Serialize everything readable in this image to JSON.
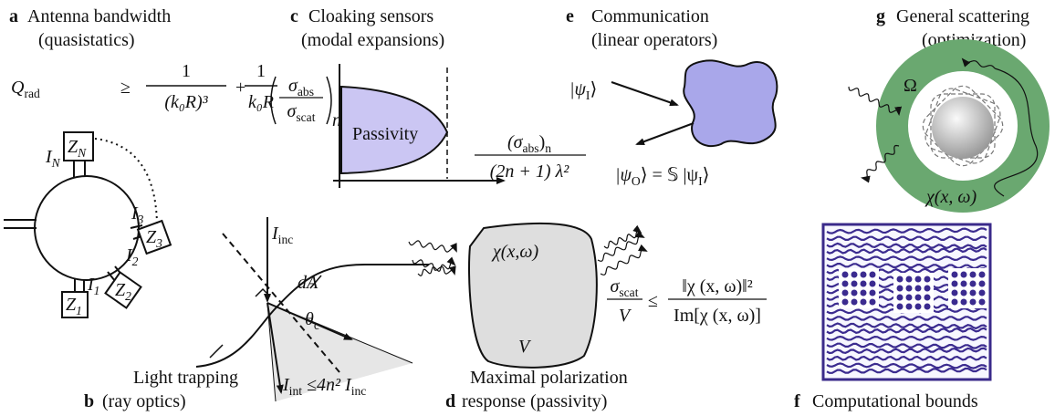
{
  "panels": {
    "a": {
      "letter": "a",
      "title": "Antenna bandwidth",
      "subtitle": "(quasistatics)",
      "equation": {
        "lhs": "Q",
        "lhs_sub": "rad",
        "relation": "≥",
        "term1": {
          "numerator": "1",
          "denominator": "(k₀R)³"
        },
        "plus": "+",
        "term2": {
          "numerator": "1",
          "denominator": "k₀R"
        }
      },
      "circuit": [
        {
          "main": "Z",
          "sub": "N"
        },
        {
          "main": "I",
          "sub": "N"
        },
        {
          "main": "I",
          "sub": "3"
        },
        {
          "main": "Z",
          "sub": "3"
        },
        {
          "main": "I",
          "sub": "2"
        },
        {
          "main": "Z",
          "sub": "2"
        },
        {
          "main": "I",
          "sub": "1"
        },
        {
          "main": "Z",
          "sub": "1"
        }
      ]
    },
    "b": {
      "letter": "b",
      "title": "Light trapping",
      "subtitle": "(ray optics)",
      "incident": {
        "main": "I",
        "sub": "inc"
      },
      "area": "dA",
      "angle": {
        "main": "θ",
        "sub": "c"
      },
      "bound": {
        "main": "I",
        "sub": "int",
        "relation": " ≤4n² ",
        "main2": "I",
        "sub2": "inc"
      }
    },
    "c": {
      "letter": "c",
      "title": "Cloaking sensors",
      "subtitle": "(modal expansions)",
      "y_label": {
        "numerator": "σ",
        "numerator_sub": "abs",
        "denominator": "σ",
        "denominator_sub": "scat",
        "sub": "n"
      },
      "region": "Passivity",
      "x_label": {
        "numerator": "(σ",
        "numerator_sub": "abs",
        "numerator_close": ")",
        "numerator_n": "n",
        "denominator": "(2n + 1) λ²"
      }
    },
    "d": {
      "letter": "d",
      "title": "Maximal polarization",
      "subtitle": "response (passivity)",
      "susceptibility": "χ(x,ω)",
      "volume": "V",
      "bound": {
        "lhs_numerator": "σ",
        "lhs_numerator_sub": "scat",
        "lhs_denominator": "V",
        "relation": "≤",
        "rhs_numerator": "‖χ (x, ω)‖²",
        "rhs_denominator": "Im[χ (x, ω)]"
      }
    },
    "e": {
      "letter": "e",
      "title": "Communication",
      "subtitle": "(linear operators)",
      "input": {
        "main": "|ψ",
        "sub": "I",
        "close": "⟩"
      },
      "output": {
        "main": "|ψ",
        "sub": "O",
        "rest": "⟩ = 𝕊 |ψ",
        "sub2": "I",
        "close": "⟩"
      }
    },
    "f": {
      "letter": "f",
      "title": "Computational bounds"
    },
    "g": {
      "letter": "g",
      "title": "General scattering",
      "subtitle": "(optimization)",
      "domain": "Ω",
      "susceptibility": "χ(x, ω)"
    }
  }
}
